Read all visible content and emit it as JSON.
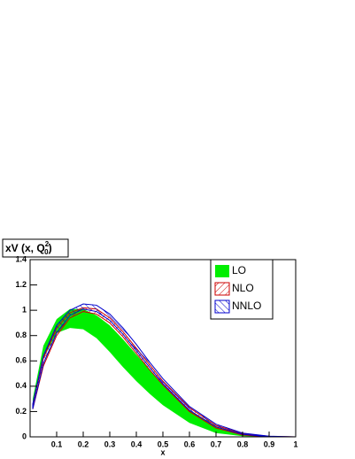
{
  "chart_data": {
    "type": "band",
    "title": {
      "text": "xV (x, Q",
      "sup": "2",
      "sub": "0",
      "close": ")"
    },
    "x_label": "x",
    "x": [
      0.01,
      0.05,
      0.1,
      0.15,
      0.2,
      0.25,
      0.3,
      0.35,
      0.4,
      0.45,
      0.5,
      0.6,
      0.7,
      0.8,
      0.9,
      1.0
    ],
    "series": [
      {
        "name": "LO",
        "color": "#00ee00",
        "fill": "solid",
        "lower": [
          0.24,
          0.62,
          0.82,
          0.86,
          0.85,
          0.78,
          0.67,
          0.55,
          0.44,
          0.34,
          0.25,
          0.11,
          0.03,
          0.005,
          0,
          0
        ],
        "upper": [
          0.3,
          0.72,
          0.93,
          1.01,
          1.01,
          0.96,
          0.88,
          0.77,
          0.65,
          0.53,
          0.41,
          0.21,
          0.08,
          0.02,
          0.002,
          0
        ]
      },
      {
        "name": "NLO",
        "color": "#cc0000",
        "fill": "hatch-right",
        "lower": [
          0.22,
          0.56,
          0.8,
          0.94,
          0.99,
          0.97,
          0.9,
          0.79,
          0.66,
          0.53,
          0.41,
          0.2,
          0.07,
          0.015,
          0,
          0
        ],
        "upper": [
          0.25,
          0.62,
          0.86,
          0.98,
          1.02,
          1.01,
          0.94,
          0.83,
          0.7,
          0.57,
          0.44,
          0.23,
          0.09,
          0.025,
          0.004,
          0
        ]
      },
      {
        "name": "NNLO",
        "color": "#0000cc",
        "fill": "hatch-left",
        "lower": [
          0.22,
          0.58,
          0.82,
          0.96,
          1.01,
          0.99,
          0.92,
          0.81,
          0.68,
          0.55,
          0.42,
          0.21,
          0.08,
          0.02,
          0,
          0
        ],
        "upper": [
          0.26,
          0.64,
          0.88,
          1.0,
          1.05,
          1.04,
          0.97,
          0.86,
          0.73,
          0.59,
          0.46,
          0.24,
          0.1,
          0.03,
          0.005,
          0
        ]
      }
    ],
    "xlim": [
      0,
      1
    ],
    "ylim": [
      0,
      1.4
    ],
    "xticks": [
      0.1,
      0.2,
      0.3,
      0.4,
      0.5,
      0.6,
      0.7,
      0.8,
      0.9,
      1
    ],
    "yticks": [
      0,
      0.2,
      0.4,
      0.6,
      0.8,
      1,
      1.2,
      1.4
    ],
    "legend": "top-right"
  }
}
